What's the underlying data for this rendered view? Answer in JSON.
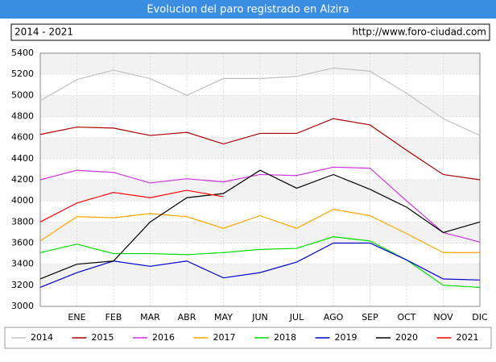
{
  "chart_data": {
    "type": "line",
    "title": "Evolucion del paro registrado en Alzira",
    "subtitle": "2014 - 2021",
    "source": "http://www.foro-ciudad.com",
    "categories": [
      null,
      "ENE",
      "FEB",
      "MAR",
      "ABR",
      "MAY",
      "JUN",
      "JUL",
      "AGO",
      "SEP",
      "OCT",
      "NOV",
      "DIC"
    ],
    "ylim": [
      3000,
      5400
    ],
    "yticks": [
      3000,
      3200,
      3400,
      3600,
      3800,
      4000,
      4200,
      4400,
      4600,
      4800,
      5000,
      5200,
      5400
    ],
    "grid": true,
    "series": [
      {
        "name": "2014",
        "color": "#c0c0c0",
        "values": [
          4950,
          5150,
          5240,
          5160,
          5000,
          5160,
          5160,
          5180,
          5260,
          5230,
          5020,
          4780,
          4620
        ]
      },
      {
        "name": "2015",
        "color": "#aa0000",
        "values": [
          4630,
          4700,
          4690,
          4620,
          4650,
          4540,
          4640,
          4640,
          4780,
          4720,
          4480,
          4250,
          4200
        ]
      },
      {
        "name": "2016",
        "color": "#cc33dd",
        "values": [
          4200,
          4290,
          4270,
          4170,
          4210,
          4180,
          4250,
          4240,
          4320,
          4310,
          4000,
          3700,
          3610
        ]
      },
      {
        "name": "2017",
        "color": "#ffa500",
        "values": [
          3620,
          3850,
          3840,
          3880,
          3850,
          3740,
          3860,
          3740,
          3920,
          3860,
          3690,
          3510,
          3510
        ]
      },
      {
        "name": "2018",
        "color": "#00dd00",
        "values": [
          3510,
          3590,
          3500,
          3500,
          3490,
          3510,
          3540,
          3550,
          3660,
          3620,
          3440,
          3200,
          3180
        ]
      },
      {
        "name": "2019",
        "color": "#0000cc",
        "values": [
          3180,
          3320,
          3430,
          3380,
          3430,
          3270,
          3320,
          3420,
          3600,
          3600,
          3440,
          3260,
          3250
        ]
      },
      {
        "name": "2020",
        "color": "#000000",
        "values": [
          3260,
          3400,
          3430,
          3800,
          4030,
          4070,
          4290,
          4120,
          4250,
          4110,
          3940,
          3700,
          3800
        ]
      },
      {
        "name": "2021",
        "color": "#ff0000",
        "values": [
          3800,
          3980,
          4080,
          4030,
          4100,
          4040,
          null,
          null,
          null,
          null,
          null,
          null,
          null
        ]
      }
    ]
  }
}
